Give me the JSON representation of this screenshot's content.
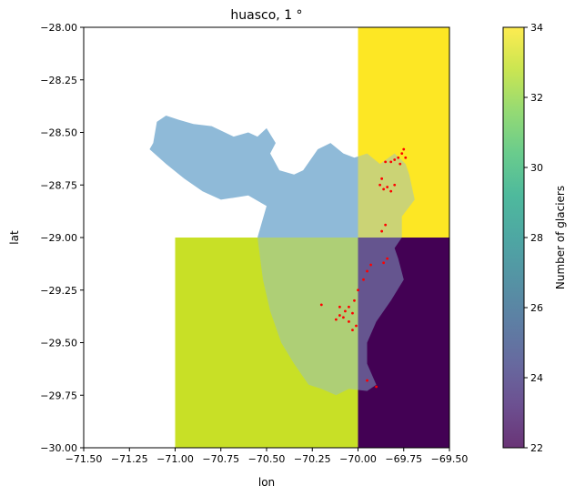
{
  "chart_data": {
    "type": "heatmap",
    "title": "huasco, 1 °",
    "xlabel": "lon",
    "ylabel": "lat",
    "xlim": [
      -71.5,
      -69.5
    ],
    "ylim": [
      -30.0,
      -28.0
    ],
    "x_ticks": [
      -71.5,
      -71.25,
      -71.0,
      -70.75,
      -70.5,
      -70.25,
      -70.0,
      -69.75,
      -69.5
    ],
    "x_tick_labels": [
      "−71.50",
      "−71.25",
      "−71.00",
      "−70.75",
      "−70.50",
      "−70.25",
      "−70.00",
      "−69.75",
      "−69.50"
    ],
    "y_ticks": [
      -28.0,
      -28.25,
      -28.5,
      -28.75,
      -29.0,
      -29.25,
      -29.5,
      -29.75,
      -30.0
    ],
    "y_tick_labels": [
      "−28.00",
      "−28.25",
      "−28.50",
      "−28.75",
      "−29.00",
      "−29.25",
      "−29.50",
      "−29.75",
      "−30.00"
    ],
    "grid": false,
    "cells": [
      {
        "lon": [
          -70.0,
          -69.5
        ],
        "lat": [
          -29.0,
          -28.0
        ],
        "value": 34
      },
      {
        "lon": [
          -71.0,
          -70.0
        ],
        "lat": [
          -30.0,
          -29.0
        ],
        "value": 33
      },
      {
        "lon": [
          -70.0,
          -69.5
        ],
        "lat": [
          -30.0,
          -29.0
        ],
        "value": 22
      }
    ],
    "colorbar": {
      "label": "Number of glaciers",
      "min": 22,
      "max": 34,
      "ticks": [
        22,
        24,
        26,
        28,
        30,
        32,
        34
      ],
      "colormap": "viridis",
      "alpha": 0.8
    },
    "basin": {
      "color": "#8fbad8",
      "outline": [
        [
          -71.12,
          -28.55
        ],
        [
          -71.1,
          -28.45
        ],
        [
          -71.05,
          -28.42
        ],
        [
          -70.98,
          -28.44
        ],
        [
          -70.9,
          -28.46
        ],
        [
          -70.8,
          -28.47
        ],
        [
          -70.68,
          -28.52
        ],
        [
          -70.6,
          -28.5
        ],
        [
          -70.55,
          -28.52
        ],
        [
          -70.5,
          -28.48
        ],
        [
          -70.45,
          -28.55
        ],
        [
          -70.48,
          -28.6
        ],
        [
          -70.43,
          -28.68
        ],
        [
          -70.35,
          -28.7
        ],
        [
          -70.3,
          -28.68
        ],
        [
          -70.22,
          -28.58
        ],
        [
          -70.15,
          -28.55
        ],
        [
          -70.08,
          -28.6
        ],
        [
          -70.02,
          -28.62
        ],
        [
          -69.95,
          -28.6
        ],
        [
          -69.88,
          -28.65
        ],
        [
          -69.8,
          -28.6
        ],
        [
          -69.74,
          -28.65
        ],
        [
          -69.72,
          -28.7
        ],
        [
          -69.69,
          -28.82
        ],
        [
          -69.76,
          -28.9
        ],
        [
          -69.76,
          -29.0
        ],
        [
          -69.8,
          -29.05
        ],
        [
          -69.78,
          -29.1
        ],
        [
          -69.75,
          -29.2
        ],
        [
          -69.82,
          -29.3
        ],
        [
          -69.9,
          -29.4
        ],
        [
          -69.95,
          -29.5
        ],
        [
          -69.95,
          -29.6
        ],
        [
          -69.9,
          -29.7
        ],
        [
          -69.95,
          -29.73
        ],
        [
          -70.05,
          -29.72
        ],
        [
          -70.12,
          -29.75
        ],
        [
          -70.2,
          -29.72
        ],
        [
          -70.27,
          -29.7
        ],
        [
          -70.35,
          -29.6
        ],
        [
          -70.42,
          -29.5
        ],
        [
          -70.48,
          -29.35
        ],
        [
          -70.52,
          -29.2
        ],
        [
          -70.55,
          -29.0
        ],
        [
          -70.5,
          -28.85
        ],
        [
          -70.6,
          -28.8
        ],
        [
          -70.75,
          -28.82
        ],
        [
          -70.85,
          -28.78
        ],
        [
          -70.95,
          -28.72
        ],
        [
          -71.05,
          -28.65
        ],
        [
          -71.14,
          -28.58
        ]
      ]
    },
    "glaciers": [
      [
        -69.85,
        -28.64
      ],
      [
        -69.82,
        -28.64
      ],
      [
        -69.8,
        -28.63
      ],
      [
        -69.78,
        -28.62
      ],
      [
        -69.76,
        -28.6
      ],
      [
        -69.75,
        -28.58
      ],
      [
        -69.77,
        -28.65
      ],
      [
        -69.74,
        -28.62
      ],
      [
        -69.88,
        -28.75
      ],
      [
        -69.86,
        -28.77
      ],
      [
        -69.84,
        -28.76
      ],
      [
        -69.82,
        -28.78
      ],
      [
        -69.8,
        -28.75
      ],
      [
        -69.87,
        -28.72
      ],
      [
        -69.85,
        -28.94
      ],
      [
        -69.87,
        -28.97
      ],
      [
        -69.84,
        -29.1
      ],
      [
        -69.86,
        -29.12
      ],
      [
        -69.93,
        -29.13
      ],
      [
        -69.95,
        -29.16
      ],
      [
        -69.97,
        -29.2
      ],
      [
        -70.0,
        -29.25
      ],
      [
        -70.02,
        -29.3
      ],
      [
        -70.05,
        -29.33
      ],
      [
        -70.07,
        -29.35
      ],
      [
        -70.08,
        -29.38
      ],
      [
        -70.03,
        -29.36
      ],
      [
        -70.05,
        -29.4
      ],
      [
        -70.1,
        -29.37
      ],
      [
        -70.1,
        -29.33
      ],
      [
        -70.12,
        -29.39
      ],
      [
        -70.2,
        -29.32
      ],
      [
        -70.01,
        -29.42
      ],
      [
        -70.03,
        -29.44
      ],
      [
        -69.95,
        -29.68
      ],
      [
        -69.9,
        -29.71
      ]
    ]
  }
}
